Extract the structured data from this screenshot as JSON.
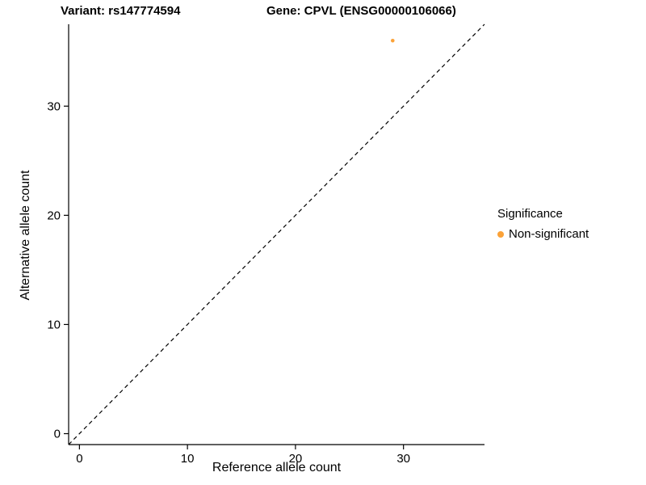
{
  "header": {
    "title_left": "Variant: rs147774594",
    "title_right": "Gene: CPVL (ENSG00000106066)"
  },
  "chart_data": {
    "type": "scatter",
    "xlabel": "Reference allele count",
    "ylabel": "Alternative allele count",
    "xlim": [
      -1,
      37.5
    ],
    "ylim": [
      -1,
      37.5
    ],
    "xticks": [
      0,
      10,
      20,
      30
    ],
    "yticks": [
      0,
      10,
      20,
      30
    ],
    "grid": false,
    "identity_line": {
      "style": "dashed",
      "from": [
        -1,
        -1
      ],
      "to": [
        37.5,
        37.5
      ],
      "color": "#000000"
    },
    "series": [
      {
        "name": "Non-significant",
        "color": "#FBA238",
        "points": [
          {
            "x": 29,
            "y": 36
          }
        ],
        "point_radius": 2.3
      }
    ],
    "legend": {
      "title": "Significance",
      "position": "right",
      "entries": [
        {
          "label": "Non-significant",
          "color": "#FBA238"
        }
      ]
    }
  }
}
